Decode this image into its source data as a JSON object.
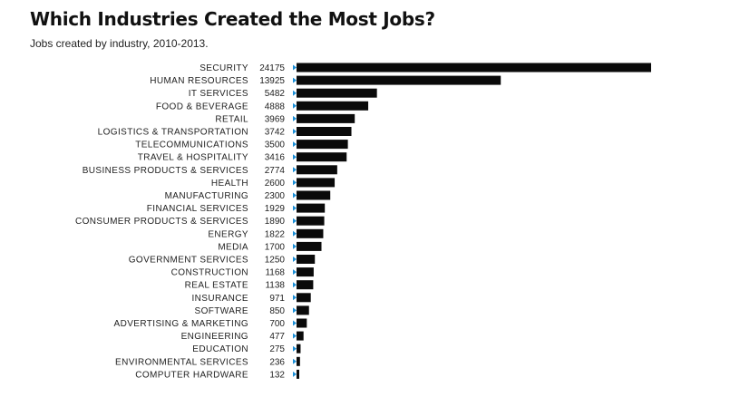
{
  "chart_data": {
    "type": "bar",
    "orientation": "horizontal",
    "title": "Which Industries Created the Most Jobs?",
    "subtitle": "Jobs created by industry, 2010-2013.",
    "xlabel": "",
    "ylabel": "",
    "xlim": [
      0,
      24175
    ],
    "grid": false,
    "categories": [
      "SECURITY",
      "HUMAN RESOURCES",
      "IT SERVICES",
      "FOOD & BEVERAGE",
      "RETAIL",
      "LOGISTICS & TRANSPORTATION",
      "TELECOMMUNICATIONS",
      "TRAVEL & HOSPITALITY",
      "BUSINESS PRODUCTS & SERVICES",
      "HEALTH",
      "MANUFACTURING",
      "FINANCIAL SERVICES",
      "CONSUMER PRODUCTS & SERVICES",
      "ENERGY",
      "MEDIA",
      "GOVERNMENT SERVICES",
      "CONSTRUCTION",
      "REAL ESTATE",
      "INSURANCE",
      "SOFTWARE",
      "ADVERTISING & MARKETING",
      "ENGINEERING",
      "EDUCATION",
      "ENVIRONMENTAL SERVICES",
      "COMPUTER HARDWARE"
    ],
    "values": [
      24175,
      13925,
      5482,
      4888,
      3969,
      3742,
      3500,
      3416,
      2774,
      2600,
      2300,
      1929,
      1890,
      1822,
      1700,
      1250,
      1168,
      1138,
      971,
      850,
      700,
      477,
      275,
      236,
      132
    ],
    "value_labels": [
      "24175",
      "13925",
      "5482",
      "4888",
      "3969",
      "3742",
      "3500",
      "3416",
      "2774",
      "2600",
      "2300",
      "1929",
      "1890",
      "1822",
      "1700",
      "1250",
      "1168",
      "1138",
      "971",
      "850",
      "700",
      "477",
      "275",
      "236",
      "132"
    ],
    "colors": {
      "bar": "#0a0a0a",
      "marker": "#1d8fd6",
      "text": "#222222"
    }
  }
}
